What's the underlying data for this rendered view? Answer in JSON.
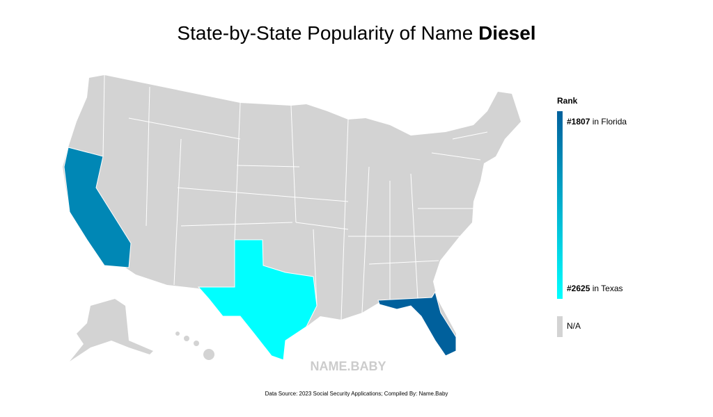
{
  "title": {
    "text": "State-by-State Popularity of Name ",
    "name": "Diesel"
  },
  "legend": {
    "title": "Rank",
    "high": {
      "value": 1807,
      "label": "#1807",
      "text": " in Florida"
    },
    "low": {
      "value": 2625,
      "label": "#2625",
      "text": " in Texas"
    },
    "na": "N/A"
  },
  "map": {
    "california_rank": 2010
  },
  "colors": {
    "high": "#00609c",
    "low": "#00ffff",
    "na": "#d3d3d3"
  },
  "watermark": "NAME.BABY",
  "source": "Data Source: 2023 Social Security Applications; Compiled By: Name.Baby"
}
